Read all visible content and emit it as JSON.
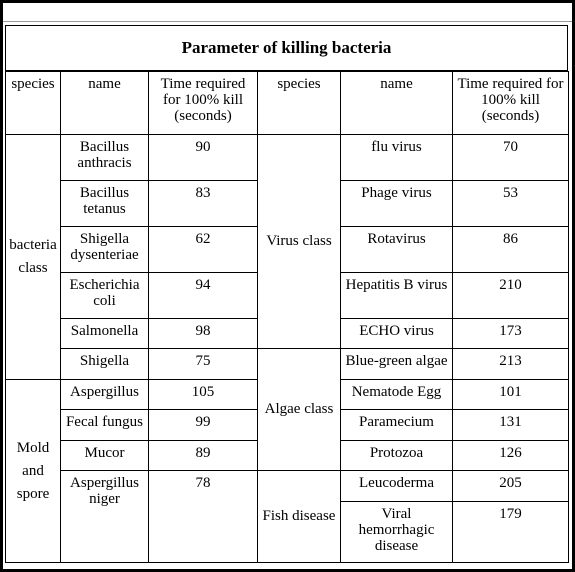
{
  "title": "Parameter of killing bacteria",
  "headers": [
    "species",
    "name",
    "Time required for 100% kill (seconds)",
    "species",
    "name",
    "Time required for 100% kill (seconds)"
  ],
  "left": [
    {
      "species": "bacteria class",
      "items": [
        {
          "name": "Bacillus anthracis",
          "time": 90
        },
        {
          "name": "Bacillus tetanus",
          "time": 83
        },
        {
          "name": "Shigella dysenteriae",
          "time": 62
        },
        {
          "name": "Escherichia coli",
          "time": 94
        },
        {
          "name": "Salmonella",
          "time": 98
        },
        {
          "name": "Shigella",
          "time": 75
        }
      ]
    },
    {
      "species": "Mold and spore",
      "items": [
        {
          "name": "Aspergillus",
          "time": 105
        },
        {
          "name": "Fecal fungus",
          "time": 99
        },
        {
          "name": "Mucor",
          "time": 89
        },
        {
          "name": "Aspergillus niger",
          "time": 78
        }
      ]
    }
  ],
  "right": [
    {
      "species": "Virus class",
      "items": [
        {
          "name": "flu virus",
          "time": 70
        },
        {
          "name": "Phage virus",
          "time": 53
        },
        {
          "name": "Rotavirus",
          "time": 86
        },
        {
          "name": "Hepatitis B virus",
          "time": 210
        },
        {
          "name": "ECHO virus",
          "time": 173
        }
      ]
    },
    {
      "species": "Algae class",
      "items": [
        {
          "name": "Blue-green algae",
          "time": 213
        },
        {
          "name": "Nematode Egg",
          "time": 101
        },
        {
          "name": "Paramecium",
          "time": 131
        },
        {
          "name": "Protozoa",
          "time": 126
        }
      ]
    },
    {
      "species": "Fish disease",
      "items": [
        {
          "name": "Leucoderma",
          "time": 205
        },
        {
          "name": "Viral hemorrhagic disease",
          "time": 179
        }
      ]
    }
  ]
}
